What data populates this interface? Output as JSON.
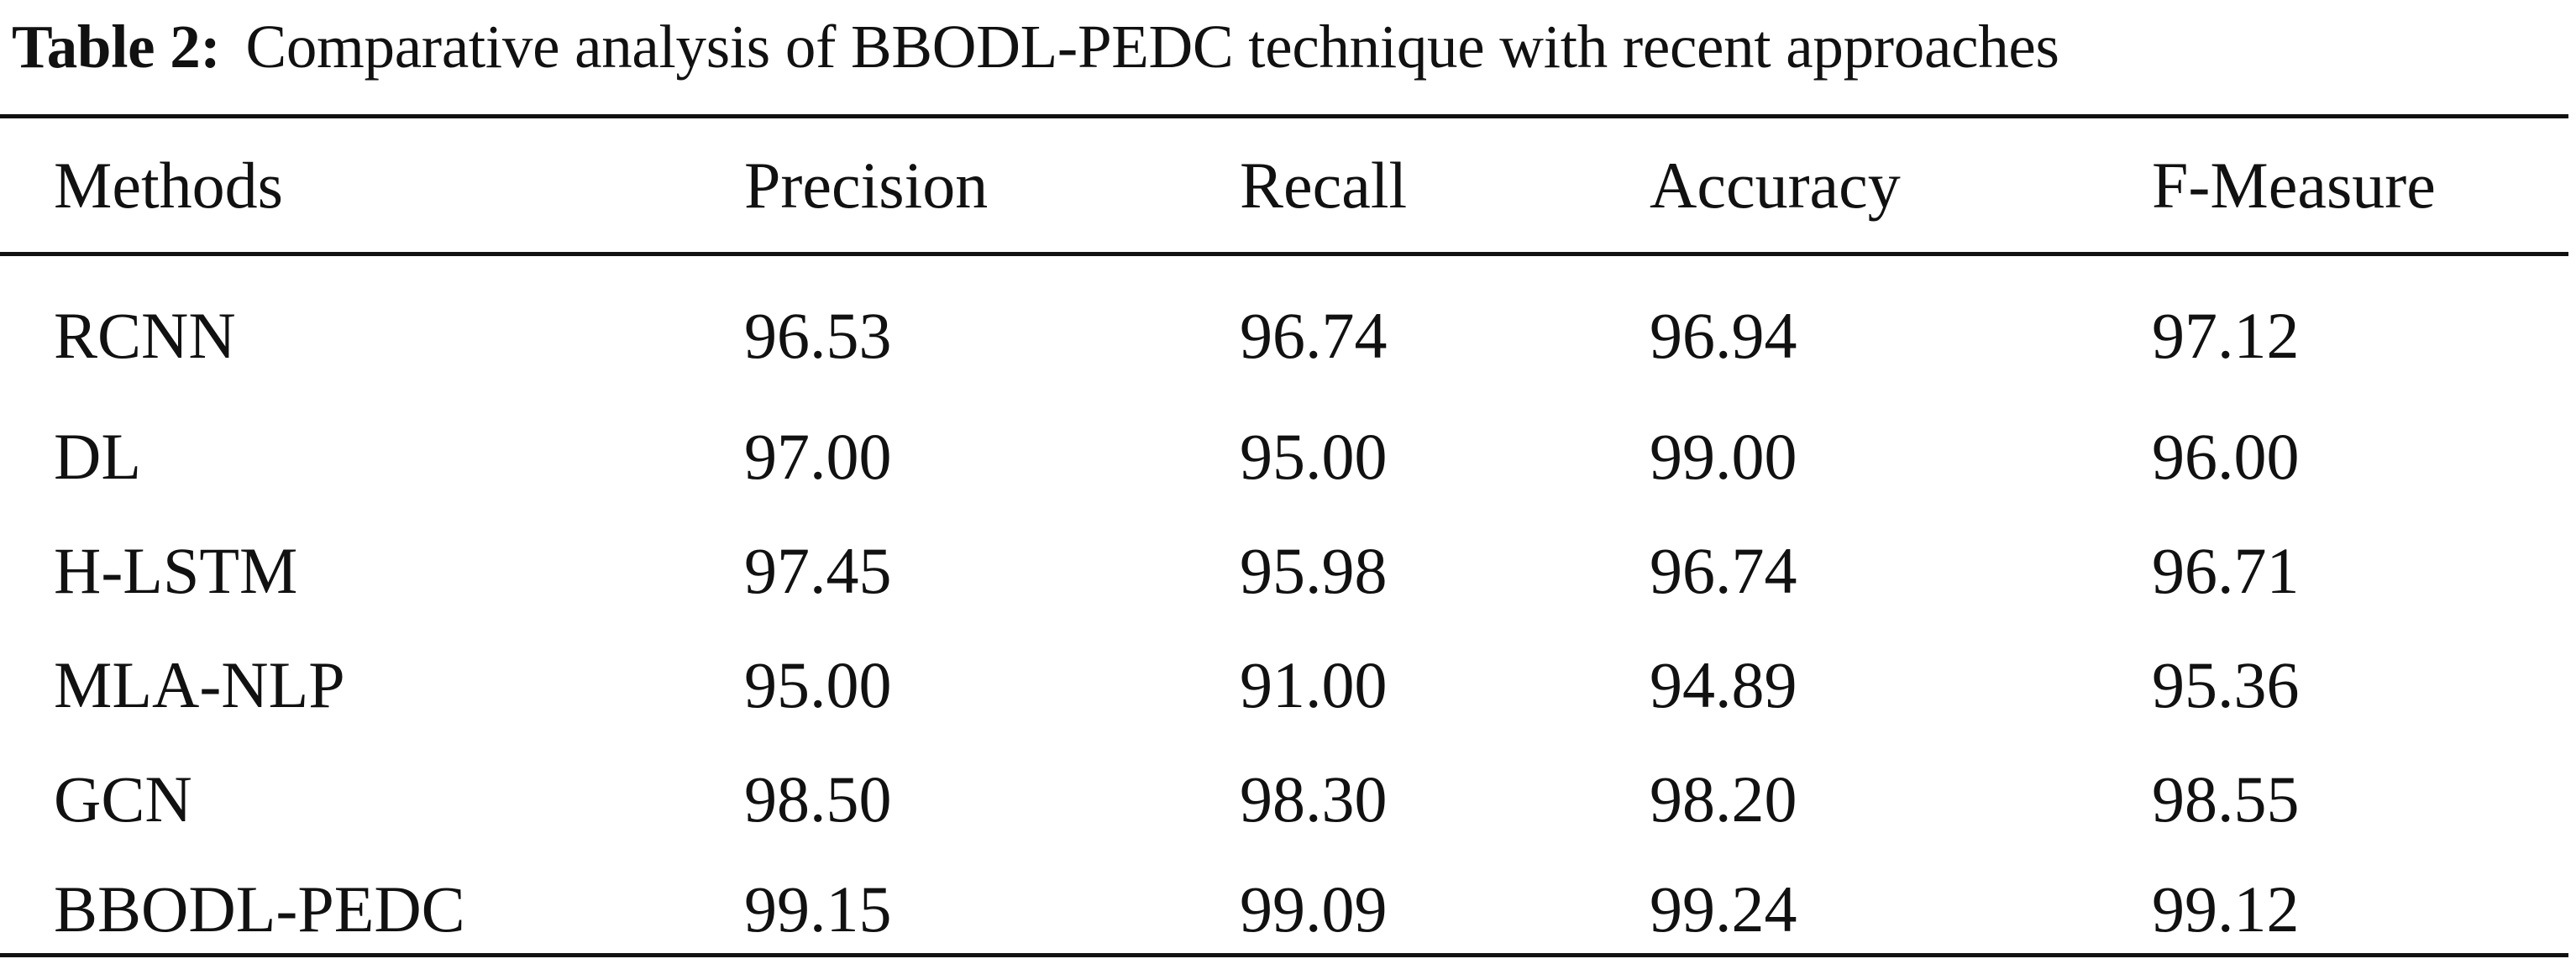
{
  "caption": {
    "label": "Table 2:",
    "text": "Comparative analysis of BBODL-PEDC technique with recent approaches"
  },
  "table": {
    "headers": [
      "Methods",
      "Precision",
      "Recall",
      "Accuracy",
      "F-Measure"
    ],
    "rows": [
      [
        "RCNN",
        "96.53",
        "96.74",
        "96.94",
        "97.12"
      ],
      [
        "DL",
        "97.00",
        "95.00",
        "99.00",
        "96.00"
      ],
      [
        "H-LSTM",
        "97.45",
        "95.98",
        "96.74",
        "96.71"
      ],
      [
        "MLA-NLP",
        "95.00",
        "91.00",
        "94.89",
        "95.36"
      ],
      [
        "GCN",
        "98.50",
        "98.30",
        "98.20",
        "98.55"
      ],
      [
        "BBODL-PEDC",
        "99.15",
        "99.09",
        "99.24",
        "99.12"
      ]
    ]
  },
  "chart_data": {
    "type": "table",
    "title": "Comparative analysis of BBODL-PEDC technique with recent approaches",
    "columns": [
      "Methods",
      "Precision",
      "Recall",
      "Accuracy",
      "F-Measure"
    ],
    "rows": [
      {
        "Methods": "RCNN",
        "Precision": 96.53,
        "Recall": 96.74,
        "Accuracy": 96.94,
        "F-Measure": 97.12
      },
      {
        "Methods": "DL",
        "Precision": 97.0,
        "Recall": 95.0,
        "Accuracy": 99.0,
        "F-Measure": 96.0
      },
      {
        "Methods": "H-LSTM",
        "Precision": 97.45,
        "Recall": 95.98,
        "Accuracy": 96.74,
        "F-Measure": 96.71
      },
      {
        "Methods": "MLA-NLP",
        "Precision": 95.0,
        "Recall": 91.0,
        "Accuracy": 94.89,
        "F-Measure": 95.36
      },
      {
        "Methods": "GCN",
        "Precision": 98.5,
        "Recall": 98.3,
        "Accuracy": 98.2,
        "F-Measure": 98.55
      },
      {
        "Methods": "BBODL-PEDC",
        "Precision": 99.15,
        "Recall": 99.09,
        "Accuracy": 99.24,
        "F-Measure": 99.12
      }
    ]
  }
}
